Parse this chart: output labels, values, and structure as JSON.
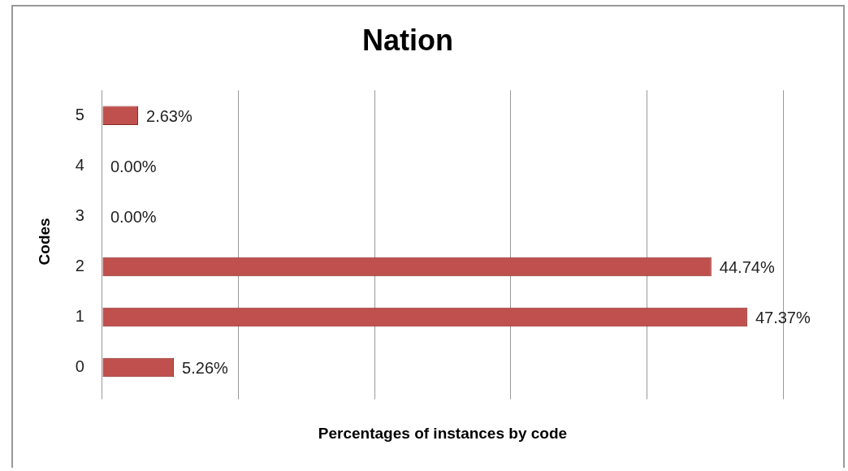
{
  "chart_data": {
    "type": "bar",
    "orientation": "horizontal",
    "title": "Nation",
    "xlabel": "Percentages of instances by code",
    "ylabel": "Codes",
    "categories": [
      "5",
      "4",
      "3",
      "2",
      "1",
      "0"
    ],
    "values": [
      2.63,
      0,
      0,
      44.74,
      47.37,
      5.26
    ],
    "value_labels": [
      "2.63%",
      "0.00%",
      "0.00%",
      "44.74%",
      "47.37%",
      "5.26%"
    ],
    "color": "#c0504d",
    "grid": "x",
    "legend": false
  }
}
